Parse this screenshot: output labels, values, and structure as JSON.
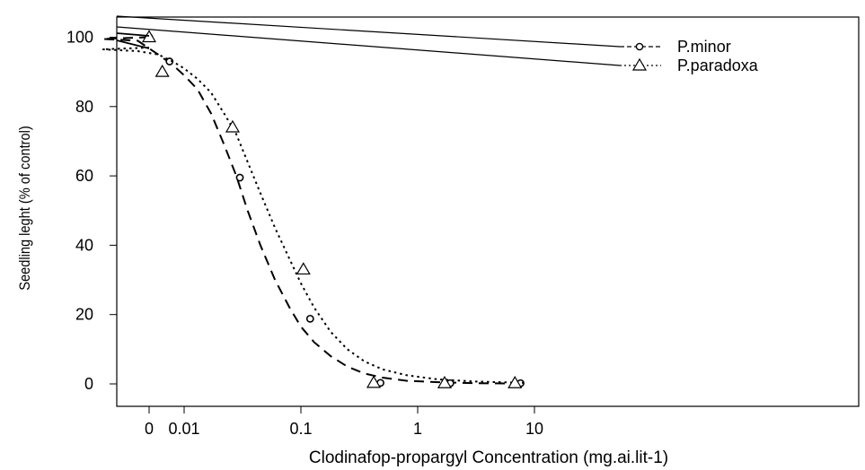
{
  "chart_data": {
    "type": "line",
    "xlabel": "Clodinafop-propargyl Concentration (mg.ai.lit-1)",
    "ylabel": "Seedling leght (% of control)",
    "x_scale": "log",
    "x_ticks": [
      0,
      0.01,
      0.1,
      1,
      10
    ],
    "x_tick_labels": [
      "0",
      "0.01",
      "0.1",
      "1",
      "10"
    ],
    "y_ticks": [
      0,
      20,
      40,
      60,
      80,
      100
    ],
    "y_tick_labels": [
      "0",
      "20",
      "40",
      "60",
      "80",
      "100"
    ],
    "ylim": [
      -3,
      106
    ],
    "grid": false,
    "legend_position": "top-right",
    "series": [
      {
        "name": "P.minor",
        "marker": "circle",
        "line_style": "dashed",
        "points": [
          {
            "x": 0,
            "y": 100
          },
          {
            "x": 0.0075,
            "y": 93
          },
          {
            "x": 0.03,
            "y": 59.5
          },
          {
            "x": 0.12,
            "y": 18.8
          },
          {
            "x": 0.48,
            "y": 0.3
          },
          {
            "x": 1.9,
            "y": 0.2
          },
          {
            "x": 7.6,
            "y": 0.2
          }
        ],
        "curve": [
          {
            "x": 0,
            "y": 100
          },
          {
            "x": 0.002,
            "y": 99.5
          },
          {
            "x": 0.004,
            "y": 99
          },
          {
            "x": 0.006,
            "y": 95
          },
          {
            "x": 0.008,
            "y": 92
          },
          {
            "x": 0.01,
            "y": 89
          },
          {
            "x": 0.013,
            "y": 85
          },
          {
            "x": 0.017,
            "y": 78
          },
          {
            "x": 0.022,
            "y": 69
          },
          {
            "x": 0.028,
            "y": 60
          },
          {
            "x": 0.035,
            "y": 50
          },
          {
            "x": 0.045,
            "y": 40
          },
          {
            "x": 0.06,
            "y": 30
          },
          {
            "x": 0.08,
            "y": 22
          },
          {
            "x": 0.1,
            "y": 16.5
          },
          {
            "x": 0.13,
            "y": 12
          },
          {
            "x": 0.18,
            "y": 8
          },
          {
            "x": 0.25,
            "y": 5
          },
          {
            "x": 0.35,
            "y": 3
          },
          {
            "x": 0.5,
            "y": 1.8
          },
          {
            "x": 0.8,
            "y": 0.9
          },
          {
            "x": 1.5,
            "y": 0.5
          },
          {
            "x": 3,
            "y": 0.2
          },
          {
            "x": 8,
            "y": 0.1
          }
        ]
      },
      {
        "name": "P.paradoxa",
        "marker": "triangle",
        "line_style": "dotted",
        "points": [
          {
            "x": 0,
            "y": 100
          },
          {
            "x": 0.0065,
            "y": 90
          },
          {
            "x": 0.026,
            "y": 74
          },
          {
            "x": 0.105,
            "y": 33
          },
          {
            "x": 0.42,
            "y": 0.3
          },
          {
            "x": 1.7,
            "y": 0.2
          },
          {
            "x": 6.8,
            "y": 0.2
          }
        ],
        "curve": [
          {
            "x": 0,
            "y": 97
          },
          {
            "x": 0.002,
            "y": 96.5
          },
          {
            "x": 0.004,
            "y": 96
          },
          {
            "x": 0.006,
            "y": 95
          },
          {
            "x": 0.008,
            "y": 93
          },
          {
            "x": 0.01,
            "y": 91
          },
          {
            "x": 0.013,
            "y": 88
          },
          {
            "x": 0.017,
            "y": 84
          },
          {
            "x": 0.022,
            "y": 78
          },
          {
            "x": 0.028,
            "y": 72
          },
          {
            "x": 0.035,
            "y": 64
          },
          {
            "x": 0.045,
            "y": 55
          },
          {
            "x": 0.06,
            "y": 45
          },
          {
            "x": 0.08,
            "y": 36
          },
          {
            "x": 0.1,
            "y": 29
          },
          {
            "x": 0.13,
            "y": 22
          },
          {
            "x": 0.18,
            "y": 15
          },
          {
            "x": 0.25,
            "y": 10
          },
          {
            "x": 0.35,
            "y": 6.5
          },
          {
            "x": 0.5,
            "y": 4.2
          },
          {
            "x": 0.8,
            "y": 2.5
          },
          {
            "x": 1.5,
            "y": 1.3
          },
          {
            "x": 3,
            "y": 0.7
          },
          {
            "x": 8,
            "y": 0.3
          }
        ]
      }
    ]
  }
}
